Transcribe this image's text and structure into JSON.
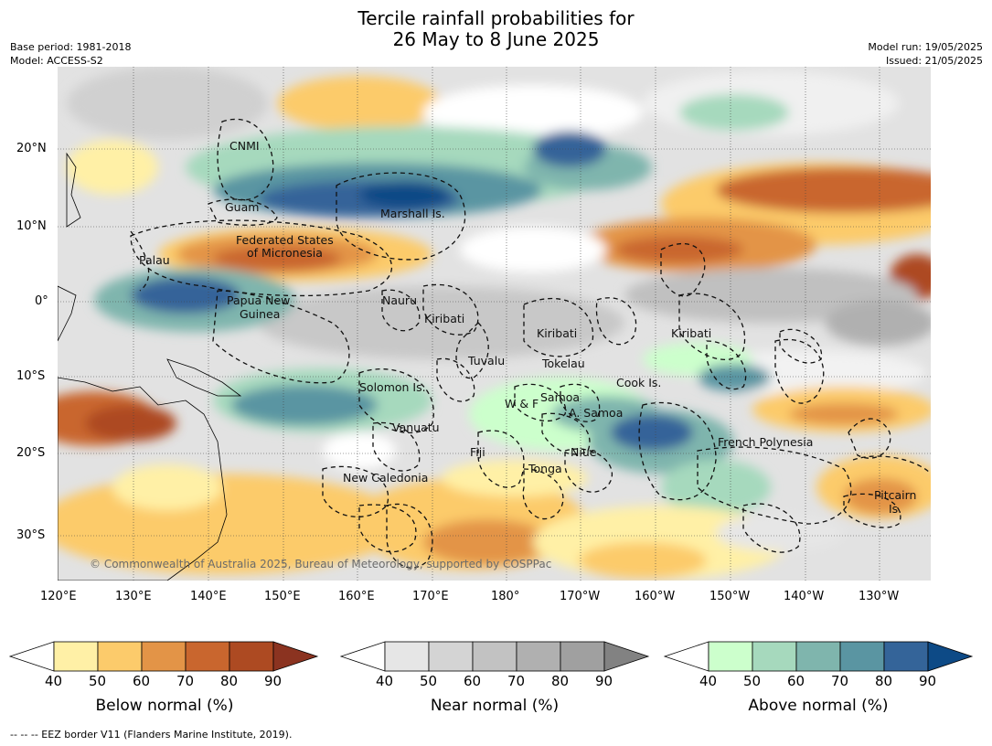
{
  "title_line1": "Tercile rainfall probabilities for",
  "title_line2": "26 May to 8 June 2025",
  "base_period": "Base period: 1981-2018",
  "model": "Model: ACCESS-S2",
  "model_run": "Model run: 19/05/2025",
  "issued": "Issued: 21/05/2025",
  "copyright": "© Commonwealth of Australia 2025, Bureau of Meteorology, supported by COSPPac",
  "eez_note": "-- -- -- EEZ border V11 (Flanders Marine Institute, 2019).",
  "lat_labels": [
    "20°N",
    "10°N",
    "0°",
    "10°S",
    "20°S",
    "30°S"
  ],
  "lon_labels": [
    "120°E",
    "130°E",
    "140°E",
    "150°E",
    "160°E",
    "170°E",
    "180°",
    "170°W",
    "160°W",
    "150°W",
    "140°W",
    "130°W"
  ],
  "regions": [
    "CNMI",
    "Guam",
    "Marshall Is.",
    "Federated States",
    "of Micronesia",
    "Palau",
    "Papua New",
    "Guinea",
    "Nauru",
    "Kiribati",
    "Kiribati",
    "Kiribati",
    "Tuvalu",
    "Tokelau",
    "Cook Is.",
    "Solomon Is.",
    "Samoa",
    "W & F",
    "A. Samoa",
    "Vanuatu",
    "Fiji",
    "Niue",
    "Tonga",
    "French Polynesia",
    "New Caledonia",
    "Pitcairn",
    "Is."
  ],
  "colorbars": {
    "below": {
      "name": "Below normal (%)",
      "ticks": [
        "40",
        "50",
        "60",
        "70",
        "80",
        "90"
      ],
      "colors": [
        "#ffffff",
        "#fff0a6",
        "#fccb6b",
        "#e39447",
        "#c9662e",
        "#ad4a22",
        "#8b3320"
      ]
    },
    "near": {
      "name": "Near normal (%)",
      "ticks": [
        "40",
        "50",
        "60",
        "70",
        "80",
        "90"
      ],
      "colors": [
        "#ffffff",
        "#e6e6e6",
        "#d4d4d4",
        "#c2c2c2",
        "#b0b0b0",
        "#a0a0a0",
        "#828282"
      ]
    },
    "above": {
      "name": "Above normal (%)",
      "ticks": [
        "40",
        "50",
        "60",
        "70",
        "80",
        "90"
      ],
      "colors": [
        "#ffffff",
        "#ccffcc",
        "#a6d9bd",
        "#7fb5ad",
        "#5a95a2",
        "#346499",
        "#0d4a86"
      ]
    }
  }
}
